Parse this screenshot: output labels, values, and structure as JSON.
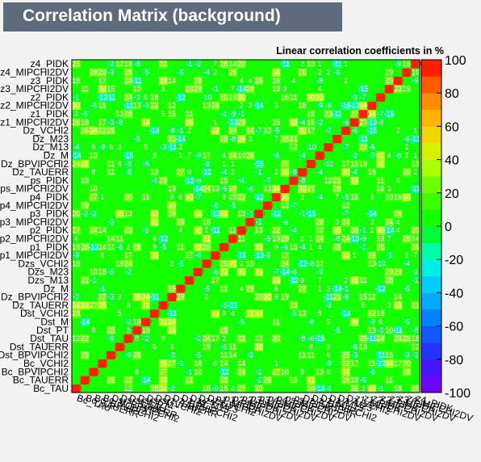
{
  "window": {
    "title": "Correlation Matrix (background)",
    "subtitle": "Linear correlation coefficients in %"
  },
  "chart_data": {
    "type": "heatmap",
    "title": "Correlation Matrix (background)",
    "subtitle": "Linear correlation coefficients in %",
    "variables": [
      "Bc_TAU",
      "Bc_TAUERR",
      "Bc_BPVIPCHI2",
      "Bc_VCHI2",
      "Dst_BPVIPCHI2",
      "Dst_TAUERR",
      "Dst_TAU",
      "Dst_PT",
      "Dst_M",
      "Dst_VCHI2",
      "Dz_TAUERR",
      "Dz_BPVIPCHI2",
      "Dz_M",
      "Dzs_M13",
      "Dzs_M23",
      "Dzs_VCHI2",
      "p1_MIPCHI2DV",
      "p1_PIDK",
      "p2_MIPCHI2DV",
      "p2_PIDK",
      "p3_MIPCHI2DV",
      "p3_PIDK",
      "p4_MIPCHI2DV",
      "p4_PIDK",
      "ps_MIPCHI2DV",
      "ps_PIDK",
      "Dz_TAUERR",
      "Dz_BPVIPCHI2",
      "Dz_M",
      "Dz_M13",
      "Dz_M23",
      "Dz_VCHI2",
      "z1_MIPCHI2DV",
      "z1_PIDK",
      "z2_MIPCHI2DV",
      "z2_PIDK",
      "z3_MIPCHI2DV",
      "z3_PIDK",
      "z4_MIPCHI2DV",
      "z4_PIDK"
    ],
    "y_tick_labels": [
      "Bc_TAU",
      "Bc_TAUERR",
      "Bc_BPVIPCHI2",
      "Bc_VCHI2",
      "Dst_BPVIPCHI2",
      "Dst_TAUERR",
      "Dst_TAU",
      "Dst_PT",
      "Dst_M",
      "Dst_VCHI2",
      "Dz_TAUERR",
      "Dz_BPVIPCHI2",
      "Dz_M",
      "Dzs_M13",
      "Dzs_M23",
      "Dzs_VCHI2",
      "p1_MIPCHI2DV",
      "p1_PIDK",
      "p2_MIPCHI2DV",
      "p2_PIDK",
      "p3_MIPCHI2DV",
      "p3_PIDK",
      "p4_MIPCHI2DV",
      "p4_PIDK",
      "ps_MIPCHI2DV",
      "ps_PIDK",
      "Dz_TAUERR",
      "Dz_BPVIPCHI2",
      "Dz_M",
      "Dz_M13",
      "Dz_M23",
      "Dz_VCHI2",
      "z1_MIPCHI2DV",
      "z1_PIDK",
      "z2_MIPCHI2DV",
      "z2_PIDK",
      "z3_MIPCHI2DV",
      "z3_PIDK",
      "z4_MIPCHI2DV",
      "z4_PIDK"
    ],
    "zlim": [
      -100,
      100
    ],
    "colorbar_ticks": [
      100,
      80,
      60,
      40,
      20,
      0,
      -20,
      -40,
      -60,
      -80,
      -100
    ],
    "legend_placement": "right colorbar",
    "diagonal_value": 100,
    "colors": {
      "background": "#f2f2f2",
      "title_box": "#5d6b7d",
      "cell_zero": "#00ff00",
      "cell_text": "#ffffff",
      "diagonal": "#ff0000"
    }
  }
}
